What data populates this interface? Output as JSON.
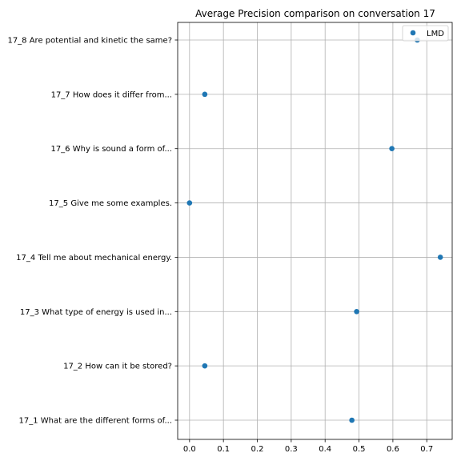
{
  "chart_data": {
    "type": "scatter",
    "title": "Average Precision comparison on conversation 17",
    "xlabel": "",
    "ylabel": "",
    "xlim": [
      -0.035,
      0.775
    ],
    "xticks": [
      "0.0",
      "0.1",
      "0.2",
      "0.3",
      "0.4",
      "0.5",
      "0.6",
      "0.7"
    ],
    "grid": true,
    "legend": {
      "placement": "top-right",
      "entries": [
        "LMD"
      ]
    },
    "categories": [
      "17_1 What are the different forms of...",
      "17_2 How can it be stored?",
      "17_3 What type of energy is used in...",
      "17_4 Tell me about mechanical energy.",
      "17_5 Give me some examples.",
      "17_6 Why is sound a form of...",
      "17_7 How does it differ from...",
      "17_8 Are potential and kinetic the same?"
    ],
    "series": [
      {
        "name": "LMD",
        "color": "#1f77b4",
        "values": [
          0.479,
          0.045,
          0.493,
          0.74,
          0.0,
          0.597,
          0.045,
          0.672
        ]
      }
    ]
  }
}
